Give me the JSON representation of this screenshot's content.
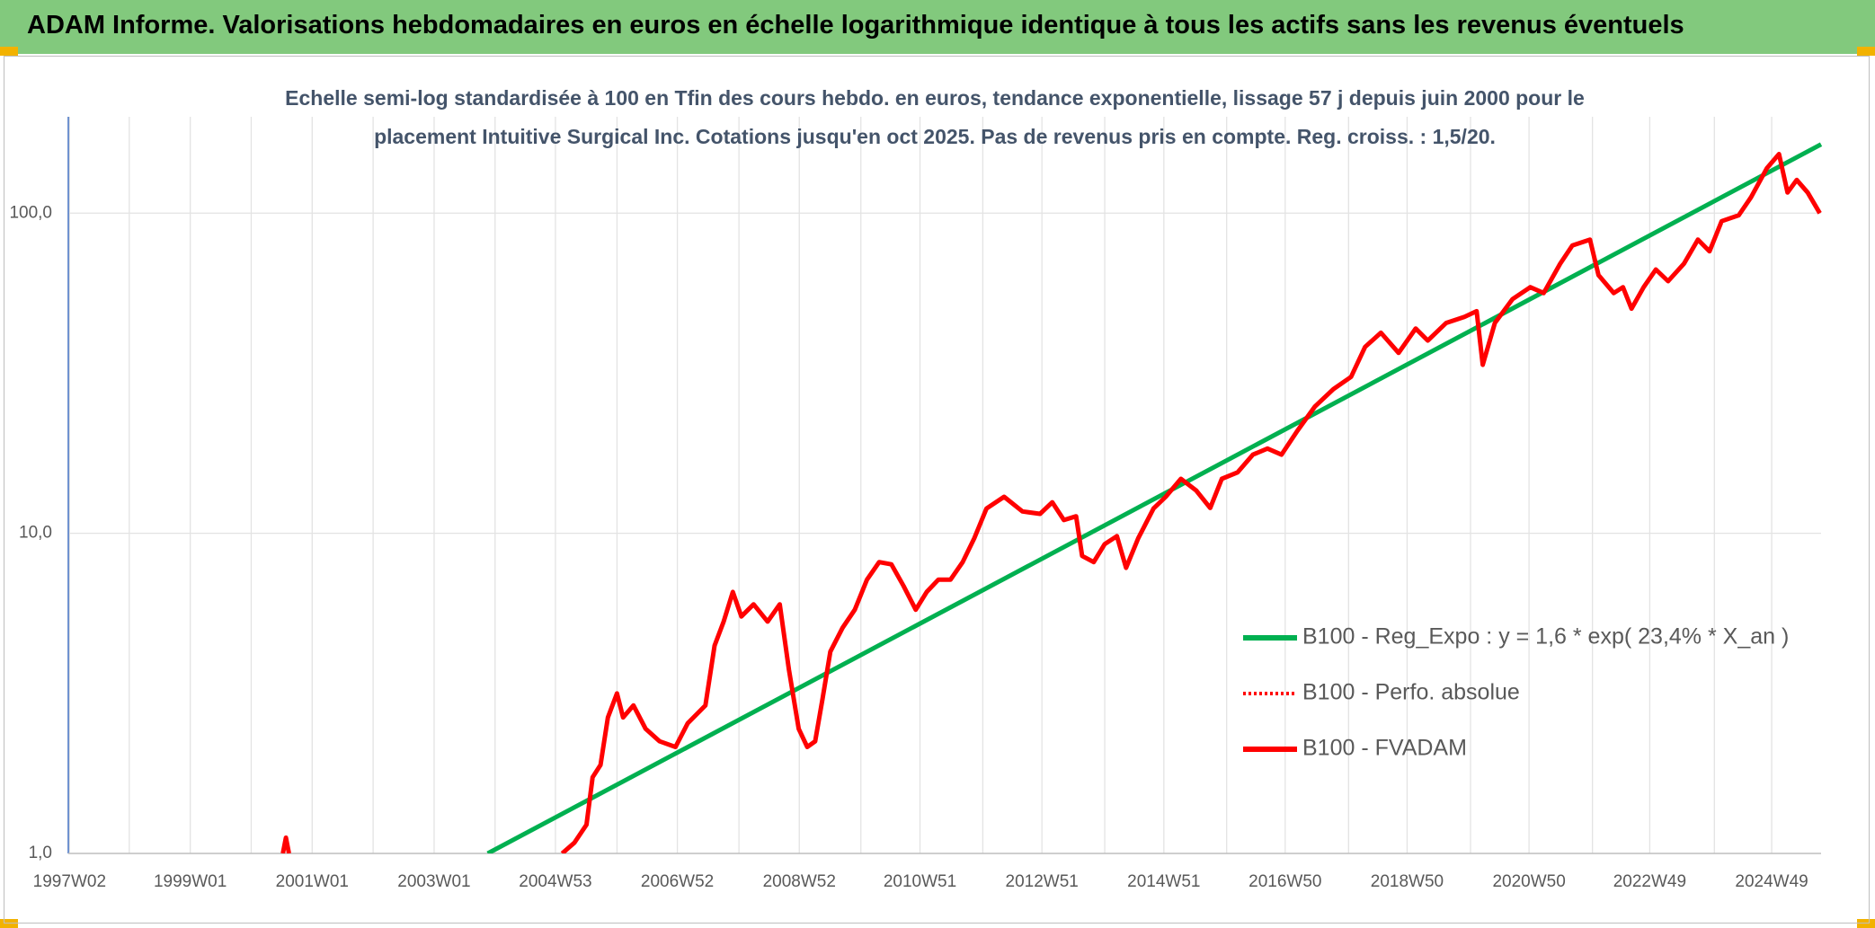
{
  "header": {
    "title": "ADAM Informe. Valorisations hebdomadaires en euros en échelle logarithmique identique à tous les actifs sans les revenus éventuels"
  },
  "chart_data": {
    "type": "line",
    "title": "Echelle semi-log standardisée à 100 en Tfin des cours hebdo. en euros, tendance exponentielle, lissage 57 j depuis juin 2000 pour le placement Intuitive Surgical Inc. Cotations jusqu'en oct 2025. Pas de revenus pris en compte. Reg. croiss. : 1,5/20.",
    "log_scale": true,
    "grid": true,
    "legend": "right",
    "xlim": [
      1997.0,
      2025.75
    ],
    "ylim": [
      1,
      200
    ],
    "yticks": [
      {
        "value": 1,
        "label": "1,0"
      },
      {
        "value": 10,
        "label": "10,0"
      },
      {
        "value": 100,
        "label": "100,0"
      }
    ],
    "xticks": [
      {
        "value": 1997.02,
        "label": "1997W02"
      },
      {
        "value": 1999.0,
        "label": "1999W01"
      },
      {
        "value": 2001.0,
        "label": "2001W01"
      },
      {
        "value": 2003.0,
        "label": "2003W01"
      },
      {
        "value": 2004.99,
        "label": "2004W53"
      },
      {
        "value": 2006.99,
        "label": "2006W52"
      },
      {
        "value": 2008.99,
        "label": "2008W52"
      },
      {
        "value": 2010.97,
        "label": "2010W51"
      },
      {
        "value": 2012.97,
        "label": "2012W51"
      },
      {
        "value": 2014.97,
        "label": "2014W51"
      },
      {
        "value": 2016.96,
        "label": "2016W50"
      },
      {
        "value": 2018.96,
        "label": "2018W50"
      },
      {
        "value": 2020.96,
        "label": "2020W50"
      },
      {
        "value": 2022.94,
        "label": "2022W49"
      },
      {
        "value": 2024.94,
        "label": "2024W49"
      }
    ],
    "xminor": [
      1998.0,
      2000.0,
      2002.0,
      2004.0,
      2006.0,
      2008.0,
      2010.0,
      2012.0,
      2014.0,
      2016.0,
      2018.0,
      2020.0,
      2022.0,
      2024.0
    ],
    "series": [
      {
        "name": "B100 - Reg_Expo : y = 1,6 * exp( 23,4% *  X_an )",
        "color": "#00b050",
        "style": "solid",
        "x": [
          2003.88,
          2025.75
        ],
        "values": [
          1.0,
          164
        ]
      },
      {
        "name": "B100 - Perfo. absolue",
        "color": "#ff0000",
        "style": "dotted",
        "x": [],
        "values": []
      },
      {
        "name": "B100 - FVADAM",
        "color": "#ff0000",
        "style": "solid",
        "x": [
          2000.52,
          2000.57,
          2000.62,
          2003.0,
          2005.1,
          2005.3,
          2005.5,
          2005.6,
          2005.73,
          2005.85,
          2006.0,
          2006.1,
          2006.27,
          2006.47,
          2006.7,
          2006.96,
          2007.16,
          2007.45,
          2007.6,
          2007.75,
          2007.9,
          2008.04,
          2008.24,
          2008.47,
          2008.67,
          2008.82,
          2008.98,
          2009.12,
          2009.25,
          2009.37,
          2009.5,
          2009.7,
          2009.9,
          2010.1,
          2010.3,
          2010.5,
          2010.7,
          2010.9,
          2011.08,
          2011.27,
          2011.47,
          2011.67,
          2011.86,
          2012.06,
          2012.35,
          2012.65,
          2012.94,
          2013.14,
          2013.33,
          2013.53,
          2013.63,
          2013.82,
          2014.0,
          2014.2,
          2014.35,
          2014.55,
          2014.8,
          2015.0,
          2015.25,
          2015.5,
          2015.73,
          2015.92,
          2016.18,
          2016.43,
          2016.67,
          2016.9,
          2017.16,
          2017.45,
          2017.75,
          2018.04,
          2018.27,
          2018.53,
          2018.82,
          2019.1,
          2019.3,
          2019.6,
          2019.9,
          2020.1,
          2020.2,
          2020.4,
          2020.69,
          2020.98,
          2021.2,
          2021.47,
          2021.67,
          2021.96,
          2022.1,
          2022.35,
          2022.5,
          2022.64,
          2022.84,
          2023.04,
          2023.24,
          2023.5,
          2023.73,
          2023.92,
          2024.12,
          2024.4,
          2024.6,
          2024.86,
          2025.06,
          2025.2,
          2025.35,
          2025.53,
          2025.73
        ],
        "values": [
          1.0,
          1.12,
          1.0,
          null,
          1.0,
          1.08,
          1.23,
          1.73,
          1.89,
          2.66,
          3.16,
          2.66,
          2.9,
          2.45,
          2.24,
          2.15,
          2.55,
          2.9,
          4.46,
          5.3,
          6.56,
          5.5,
          6.0,
          5.3,
          6.0,
          3.75,
          2.45,
          2.15,
          2.24,
          3.03,
          4.27,
          5.07,
          5.77,
          7.16,
          8.13,
          8.0,
          6.85,
          5.77,
          6.56,
          7.16,
          7.16,
          8.13,
          9.65,
          11.95,
          13.0,
          11.7,
          11.5,
          12.5,
          11.0,
          11.3,
          8.5,
          8.13,
          9.25,
          9.8,
          7.8,
          9.65,
          11.95,
          13.0,
          14.8,
          13.6,
          12.0,
          14.8,
          15.5,
          17.6,
          18.4,
          17.6,
          20.9,
          24.9,
          28.2,
          30.8,
          38.2,
          42.3,
          36.6,
          43.6,
          40.0,
          45.4,
          47.4,
          49.4,
          33.6,
          45.4,
          53.9,
          58.7,
          56.3,
          69.5,
          79.3,
          82.7,
          64.0,
          56.3,
          58.7,
          50.3,
          58.7,
          66.7,
          61.3,
          69.5,
          82.7,
          76.0,
          94.4,
          98.5,
          112,
          138,
          153,
          116,
          127,
          116,
          100
        ]
      }
    ]
  }
}
